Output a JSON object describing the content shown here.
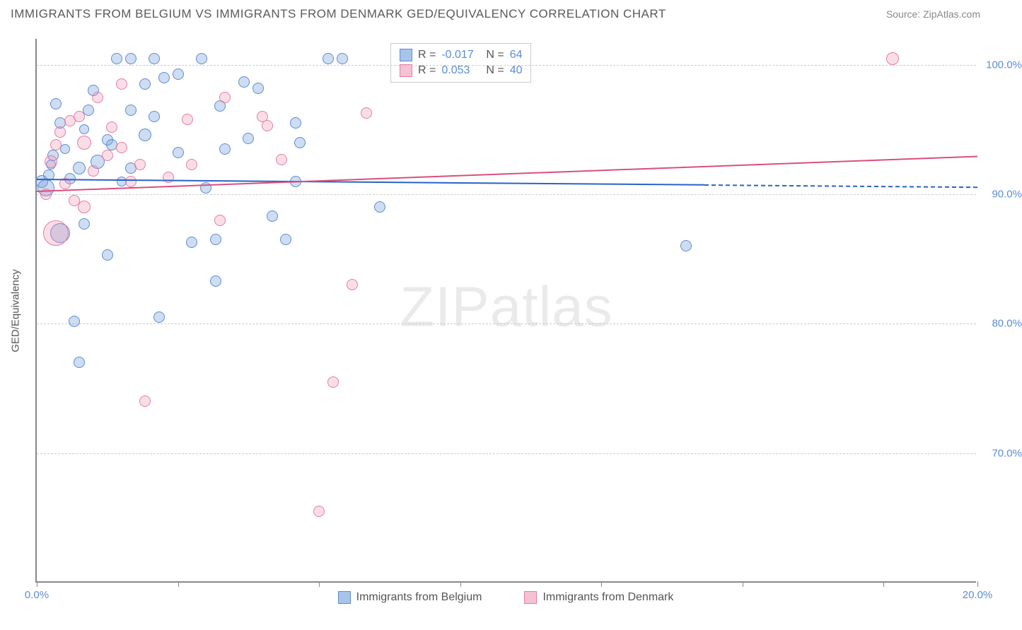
{
  "title": "IMMIGRANTS FROM BELGIUM VS IMMIGRANTS FROM DENMARK GED/EQUIVALENCY CORRELATION CHART",
  "source_label": "Source: ZipAtlas.com",
  "ylabel": "GED/Equivalency",
  "watermark": "ZIPatlas",
  "chart": {
    "type": "scatter",
    "xlim": [
      0,
      20
    ],
    "ylim": [
      60,
      102
    ],
    "xticks": [
      0,
      3,
      6,
      9,
      12,
      15,
      18,
      20
    ],
    "xtick_labels": {
      "0": "0.0%",
      "20": "20.0%"
    },
    "yticks": [
      70,
      80,
      90,
      100
    ],
    "ytick_labels": [
      "70.0%",
      "80.0%",
      "90.0%",
      "100.0%"
    ],
    "grid_color": "#cccccc",
    "background_color": "#ffffff",
    "series": [
      {
        "name": "Immigrants from Belgium",
        "fill": "rgba(115,159,214,0.35)",
        "stroke": "#5b8dd6",
        "legend_fill": "#a8c4e8",
        "legend_stroke": "#5b8dd6",
        "R": "-0.017",
        "N": "64",
        "trend": {
          "y_start": 91.2,
          "y_end": 90.6,
          "x_end": 14.2,
          "dash_to": 20,
          "color": "#2a62c9"
        },
        "points": [
          {
            "x": 0.1,
            "y": 91.0,
            "r": 9
          },
          {
            "x": 0.2,
            "y": 90.5,
            "r": 12
          },
          {
            "x": 0.25,
            "y": 91.5,
            "r": 8
          },
          {
            "x": 0.3,
            "y": 92.3,
            "r": 7
          },
          {
            "x": 0.35,
            "y": 93.0,
            "r": 8
          },
          {
            "x": 0.4,
            "y": 97.0,
            "r": 8
          },
          {
            "x": 0.5,
            "y": 95.5,
            "r": 8
          },
          {
            "x": 0.5,
            "y": 87.0,
            "r": 14
          },
          {
            "x": 0.6,
            "y": 93.5,
            "r": 7
          },
          {
            "x": 0.7,
            "y": 91.2,
            "r": 8
          },
          {
            "x": 0.8,
            "y": 80.2,
            "r": 8
          },
          {
            "x": 0.9,
            "y": 92.0,
            "r": 9
          },
          {
            "x": 0.9,
            "y": 77.0,
            "r": 8
          },
          {
            "x": 1.0,
            "y": 87.7,
            "r": 8
          },
          {
            "x": 1.0,
            "y": 95.0,
            "r": 7
          },
          {
            "x": 1.1,
            "y": 96.5,
            "r": 8
          },
          {
            "x": 1.2,
            "y": 98.0,
            "r": 8
          },
          {
            "x": 1.3,
            "y": 92.5,
            "r": 10
          },
          {
            "x": 1.5,
            "y": 94.2,
            "r": 8
          },
          {
            "x": 1.5,
            "y": 85.3,
            "r": 8
          },
          {
            "x": 1.6,
            "y": 93.8,
            "r": 8
          },
          {
            "x": 1.7,
            "y": 100.5,
            "r": 8
          },
          {
            "x": 1.8,
            "y": 91.0,
            "r": 7
          },
          {
            "x": 2.0,
            "y": 100.5,
            "r": 8
          },
          {
            "x": 2.0,
            "y": 92.0,
            "r": 8
          },
          {
            "x": 2.0,
            "y": 96.5,
            "r": 8
          },
          {
            "x": 2.3,
            "y": 94.6,
            "r": 9
          },
          {
            "x": 2.3,
            "y": 98.5,
            "r": 8
          },
          {
            "x": 2.5,
            "y": 100.5,
            "r": 8
          },
          {
            "x": 2.5,
            "y": 96.0,
            "r": 8
          },
          {
            "x": 2.6,
            "y": 80.5,
            "r": 8
          },
          {
            "x": 2.7,
            "y": 99.0,
            "r": 8
          },
          {
            "x": 3.0,
            "y": 93.2,
            "r": 8
          },
          {
            "x": 3.0,
            "y": 99.3,
            "r": 8
          },
          {
            "x": 3.3,
            "y": 86.3,
            "r": 8
          },
          {
            "x": 3.5,
            "y": 100.5,
            "r": 8
          },
          {
            "x": 3.6,
            "y": 90.5,
            "r": 8
          },
          {
            "x": 3.8,
            "y": 86.5,
            "r": 8
          },
          {
            "x": 3.8,
            "y": 83.3,
            "r": 8
          },
          {
            "x": 3.9,
            "y": 96.8,
            "r": 8
          },
          {
            "x": 4.0,
            "y": 93.5,
            "r": 8
          },
          {
            "x": 4.4,
            "y": 98.7,
            "r": 8
          },
          {
            "x": 4.5,
            "y": 94.3,
            "r": 8
          },
          {
            "x": 4.7,
            "y": 98.2,
            "r": 8
          },
          {
            "x": 5.0,
            "y": 88.3,
            "r": 8
          },
          {
            "x": 5.3,
            "y": 86.5,
            "r": 8
          },
          {
            "x": 5.5,
            "y": 95.5,
            "r": 8
          },
          {
            "x": 5.5,
            "y": 91.0,
            "r": 8
          },
          {
            "x": 5.6,
            "y": 94.0,
            "r": 8
          },
          {
            "x": 6.2,
            "y": 100.5,
            "r": 8
          },
          {
            "x": 6.5,
            "y": 100.5,
            "r": 8
          },
          {
            "x": 7.3,
            "y": 89.0,
            "r": 8
          },
          {
            "x": 13.8,
            "y": 86.0,
            "r": 8
          }
        ]
      },
      {
        "name": "Immigrants from Denmark",
        "fill": "rgba(238,145,175,0.30)",
        "stroke": "#e87ba3",
        "legend_fill": "#f5c2d3",
        "legend_stroke": "#e87ba3",
        "R": "0.053",
        "N": "40",
        "trend": {
          "y_start": 90.3,
          "y_end": 93.0,
          "x_end": 20,
          "color": "#d94f7f"
        },
        "points": [
          {
            "x": 0.2,
            "y": 90.0,
            "r": 8
          },
          {
            "x": 0.3,
            "y": 92.5,
            "r": 9
          },
          {
            "x": 0.4,
            "y": 93.8,
            "r": 8
          },
          {
            "x": 0.4,
            "y": 87.0,
            "r": 18
          },
          {
            "x": 0.5,
            "y": 94.8,
            "r": 8
          },
          {
            "x": 0.6,
            "y": 90.8,
            "r": 8
          },
          {
            "x": 0.7,
            "y": 95.7,
            "r": 8
          },
          {
            "x": 0.8,
            "y": 89.5,
            "r": 8
          },
          {
            "x": 0.9,
            "y": 96.0,
            "r": 8
          },
          {
            "x": 1.0,
            "y": 94.0,
            "r": 10
          },
          {
            "x": 1.0,
            "y": 89.0,
            "r": 9
          },
          {
            "x": 1.2,
            "y": 91.8,
            "r": 8
          },
          {
            "x": 1.3,
            "y": 97.5,
            "r": 8
          },
          {
            "x": 1.5,
            "y": 93.0,
            "r": 8
          },
          {
            "x": 1.6,
            "y": 95.2,
            "r": 8
          },
          {
            "x": 1.8,
            "y": 93.6,
            "r": 8
          },
          {
            "x": 1.8,
            "y": 98.5,
            "r": 8
          },
          {
            "x": 2.0,
            "y": 91.0,
            "r": 8
          },
          {
            "x": 2.2,
            "y": 92.3,
            "r": 8
          },
          {
            "x": 2.3,
            "y": 74.0,
            "r": 8
          },
          {
            "x": 2.8,
            "y": 91.3,
            "r": 8
          },
          {
            "x": 3.2,
            "y": 95.8,
            "r": 8
          },
          {
            "x": 3.3,
            "y": 92.3,
            "r": 8
          },
          {
            "x": 3.9,
            "y": 88.0,
            "r": 8
          },
          {
            "x": 4.0,
            "y": 97.5,
            "r": 8
          },
          {
            "x": 4.8,
            "y": 96.0,
            "r": 8
          },
          {
            "x": 4.9,
            "y": 95.3,
            "r": 8
          },
          {
            "x": 5.2,
            "y": 92.7,
            "r": 8
          },
          {
            "x": 6.0,
            "y": 65.5,
            "r": 8
          },
          {
            "x": 6.3,
            "y": 75.5,
            "r": 8
          },
          {
            "x": 6.7,
            "y": 83.0,
            "r": 8
          },
          {
            "x": 7.0,
            "y": 96.3,
            "r": 8
          },
          {
            "x": 18.2,
            "y": 100.5,
            "r": 9
          }
        ]
      }
    ]
  },
  "stats_labels": {
    "r": "R =",
    "n": "N ="
  }
}
